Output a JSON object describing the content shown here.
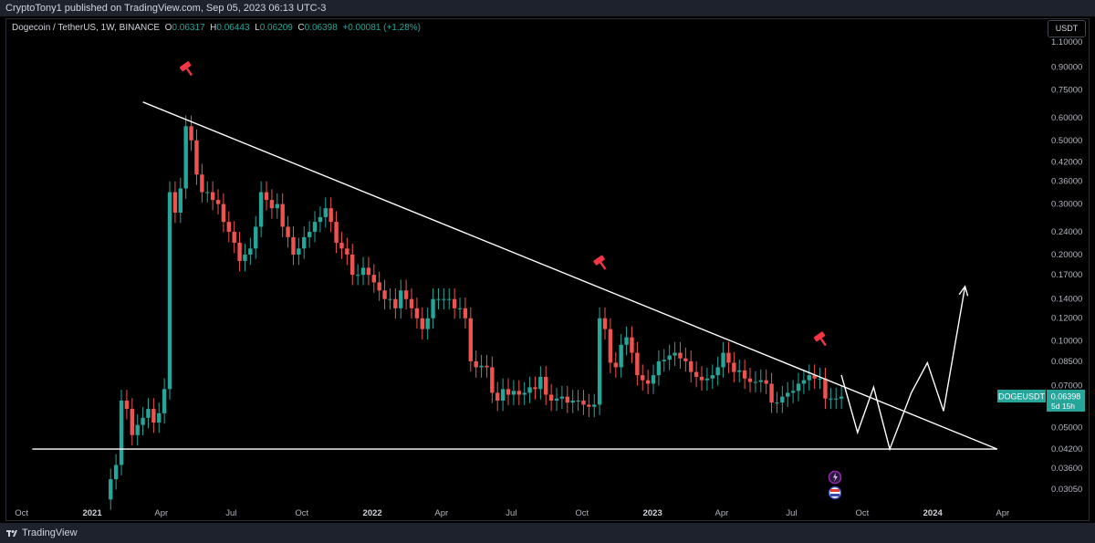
{
  "header": {
    "published": "CryptoTony1 published on TradingView.com, Sep 05, 2023 06:13 UTC-3"
  },
  "legend": {
    "symbol": "Dogecoin / TetherUS, 1W, BINANCE",
    "o_label": "O",
    "o": "0.06317",
    "h_label": "H",
    "h": "0.06443",
    "l_label": "L",
    "l": "0.06209",
    "c_label": "C",
    "c": "0.06398",
    "change": "+0.00081 (+1.28%)"
  },
  "currency_button": "USDT",
  "price_tag": {
    "symbol": "DOGEUSDT",
    "price": "0.06398",
    "countdown": "5d 15h"
  },
  "footer": {
    "brand": "TradingView"
  },
  "colors": {
    "up": "#26a69a",
    "down": "#ef5350",
    "line": "#ffffff",
    "background": "#000000",
    "marker": "#f23645"
  },
  "chart_data": {
    "type": "candlestick",
    "scale": "log",
    "ylim": [
      0.0275,
      1.15
    ],
    "y_ticks": [
      "1.10000",
      "0.90000",
      "0.75000",
      "0.60000",
      "0.50000",
      "0.42000",
      "0.36000",
      "0.30000",
      "0.24000",
      "0.20000",
      "0.17000",
      "0.14000",
      "0.12000",
      "0.10000",
      "0.08500",
      "0.07000",
      "0.05000",
      "0.04200",
      "0.03600",
      "0.03050"
    ],
    "x_ticks": [
      {
        "label": "Oct"
      },
      {
        "label": "2021",
        "bold": true
      },
      {
        "label": "Apr"
      },
      {
        "label": "Jul"
      },
      {
        "label": "Oct"
      },
      {
        "label": "2022",
        "bold": true
      },
      {
        "label": "Apr"
      },
      {
        "label": "Jul"
      },
      {
        "label": "Oct"
      },
      {
        "label": "2023",
        "bold": true
      },
      {
        "label": "Apr"
      },
      {
        "label": "Jul"
      },
      {
        "label": "Oct"
      },
      {
        "label": "2024",
        "bold": true
      },
      {
        "label": "Apr"
      }
    ],
    "xlim": [
      "2020-09-10",
      "2024-05-20"
    ],
    "close_series": [
      [
        "2021-01-25",
        0.033
      ],
      [
        "2021-02-01",
        0.037
      ],
      [
        "2021-02-08",
        0.062
      ],
      [
        "2021-02-15",
        0.058
      ],
      [
        "2021-02-22",
        0.047
      ],
      [
        "2021-03-01",
        0.051
      ],
      [
        "2021-03-08",
        0.054
      ],
      [
        "2021-03-15",
        0.058
      ],
      [
        "2021-03-22",
        0.052
      ],
      [
        "2021-03-29",
        0.056
      ],
      [
        "2021-04-05",
        0.068
      ],
      [
        "2021-04-12",
        0.33
      ],
      [
        "2021-04-19",
        0.28
      ],
      [
        "2021-04-26",
        0.34
      ],
      [
        "2021-05-03",
        0.56
      ],
      [
        "2021-05-10",
        0.5
      ],
      [
        "2021-05-17",
        0.38
      ],
      [
        "2021-05-24",
        0.33
      ],
      [
        "2021-05-31",
        0.33
      ],
      [
        "2021-06-07",
        0.31
      ],
      [
        "2021-06-14",
        0.3
      ],
      [
        "2021-06-21",
        0.26
      ],
      [
        "2021-06-28",
        0.24
      ],
      [
        "2021-07-05",
        0.22
      ],
      [
        "2021-07-12",
        0.19
      ],
      [
        "2021-07-19",
        0.2
      ],
      [
        "2021-07-26",
        0.21
      ],
      [
        "2021-08-02",
        0.25
      ],
      [
        "2021-08-09",
        0.33
      ],
      [
        "2021-08-16",
        0.31
      ],
      [
        "2021-08-23",
        0.29
      ],
      [
        "2021-08-30",
        0.3
      ],
      [
        "2021-09-06",
        0.25
      ],
      [
        "2021-09-13",
        0.23
      ],
      [
        "2021-09-20",
        0.2
      ],
      [
        "2021-09-27",
        0.21
      ],
      [
        "2021-10-04",
        0.23
      ],
      [
        "2021-10-11",
        0.24
      ],
      [
        "2021-10-18",
        0.26
      ],
      [
        "2021-10-25",
        0.27
      ],
      [
        "2021-11-01",
        0.29
      ],
      [
        "2021-11-08",
        0.26
      ],
      [
        "2021-11-15",
        0.22
      ],
      [
        "2021-11-22",
        0.21
      ],
      [
        "2021-11-29",
        0.2
      ],
      [
        "2021-12-06",
        0.17
      ],
      [
        "2021-12-13",
        0.17
      ],
      [
        "2021-12-20",
        0.18
      ],
      [
        "2021-12-27",
        0.17
      ],
      [
        "2022-01-03",
        0.16
      ],
      [
        "2022-01-10",
        0.15
      ],
      [
        "2022-01-17",
        0.14
      ],
      [
        "2022-01-24",
        0.14
      ],
      [
        "2022-01-31",
        0.13
      ],
      [
        "2022-02-07",
        0.15
      ],
      [
        "2022-02-14",
        0.14
      ],
      [
        "2022-02-21",
        0.13
      ],
      [
        "2022-02-28",
        0.12
      ],
      [
        "2022-03-07",
        0.11
      ],
      [
        "2022-03-14",
        0.12
      ],
      [
        "2022-03-21",
        0.14
      ],
      [
        "2022-03-28",
        0.14
      ],
      [
        "2022-04-04",
        0.14
      ],
      [
        "2022-04-11",
        0.14
      ],
      [
        "2022-04-18",
        0.13
      ],
      [
        "2022-04-25",
        0.13
      ],
      [
        "2022-05-02",
        0.12
      ],
      [
        "2022-05-09",
        0.085
      ],
      [
        "2022-05-16",
        0.081
      ],
      [
        "2022-05-23",
        0.082
      ],
      [
        "2022-05-30",
        0.081
      ],
      [
        "2022-06-06",
        0.066
      ],
      [
        "2022-06-13",
        0.062
      ],
      [
        "2022-06-20",
        0.068
      ],
      [
        "2022-06-27",
        0.065
      ],
      [
        "2022-07-04",
        0.067
      ],
      [
        "2022-07-11",
        0.065
      ],
      [
        "2022-07-18",
        0.066
      ],
      [
        "2022-07-25",
        0.069
      ],
      [
        "2022-08-01",
        0.068
      ],
      [
        "2022-08-08",
        0.075
      ],
      [
        "2022-08-15",
        0.065
      ],
      [
        "2022-08-22",
        0.062
      ],
      [
        "2022-08-29",
        0.063
      ],
      [
        "2022-09-05",
        0.064
      ],
      [
        "2022-09-12",
        0.061
      ],
      [
        "2022-09-19",
        0.062
      ],
      [
        "2022-09-26",
        0.062
      ],
      [
        "2022-10-03",
        0.06
      ],
      [
        "2022-10-10",
        0.059
      ],
      [
        "2022-10-17",
        0.06
      ],
      [
        "2022-10-24",
        0.12
      ],
      [
        "2022-10-31",
        0.11
      ],
      [
        "2022-11-07",
        0.084
      ],
      [
        "2022-11-14",
        0.081
      ],
      [
        "2022-11-21",
        0.097
      ],
      [
        "2022-11-28",
        0.103
      ],
      [
        "2022-12-05",
        0.091
      ],
      [
        "2022-12-12",
        0.076
      ],
      [
        "2022-12-19",
        0.073
      ],
      [
        "2022-12-26",
        0.071
      ],
      [
        "2023-01-02",
        0.076
      ],
      [
        "2023-01-09",
        0.085
      ],
      [
        "2023-01-16",
        0.086
      ],
      [
        "2023-01-23",
        0.089
      ],
      [
        "2023-01-30",
        0.091
      ],
      [
        "2023-02-06",
        0.087
      ],
      [
        "2023-02-13",
        0.085
      ],
      [
        "2023-02-20",
        0.078
      ],
      [
        "2023-02-27",
        0.075
      ],
      [
        "2023-03-06",
        0.073
      ],
      [
        "2023-03-13",
        0.074
      ],
      [
        "2023-03-20",
        0.076
      ],
      [
        "2023-03-27",
        0.081
      ],
      [
        "2023-04-03",
        0.091
      ],
      [
        "2023-04-10",
        0.084
      ],
      [
        "2023-04-17",
        0.078
      ],
      [
        "2023-04-24",
        0.079
      ],
      [
        "2023-05-01",
        0.074
      ],
      [
        "2023-05-08",
        0.072
      ],
      [
        "2023-05-15",
        0.072
      ],
      [
        "2023-05-22",
        0.073
      ],
      [
        "2023-05-29",
        0.071
      ],
      [
        "2023-06-05",
        0.061
      ],
      [
        "2023-06-12",
        0.061
      ],
      [
        "2023-06-19",
        0.064
      ],
      [
        "2023-06-26",
        0.066
      ],
      [
        "2023-07-03",
        0.067
      ],
      [
        "2023-07-10",
        0.071
      ],
      [
        "2023-07-17",
        0.073
      ],
      [
        "2023-07-24",
        0.076
      ],
      [
        "2023-07-31",
        0.074
      ],
      [
        "2023-08-07",
        0.074
      ],
      [
        "2023-08-14",
        0.063
      ],
      [
        "2023-08-21",
        0.063
      ],
      [
        "2023-08-28",
        0.063
      ],
      [
        "2023-09-04",
        0.064
      ]
    ],
    "annotations": {
      "descending_trendline": [
        [
          "2021-03-08",
          0.68
        ],
        [
          "2024-03-25",
          0.042
        ]
      ],
      "horizontal_support": [
        [
          "2020-10-15",
          0.042
        ],
        [
          "2024-03-25",
          0.042
        ]
      ],
      "projected_path": [
        [
          "2023-09-04",
          0.076
        ],
        [
          "2023-09-25",
          0.048
        ],
        [
          "2023-10-16",
          0.069
        ],
        [
          "2023-11-06",
          0.042
        ],
        [
          "2023-12-04",
          0.066
        ],
        [
          "2023-12-25",
          0.084
        ],
        [
          "2024-01-15",
          0.057
        ],
        [
          "2024-02-12",
          0.155
        ]
      ],
      "sell_markers": [
        [
          "2021-05-03",
          0.9
        ],
        [
          "2022-10-24",
          0.19
        ],
        [
          "2023-08-07",
          0.103
        ]
      ]
    }
  }
}
